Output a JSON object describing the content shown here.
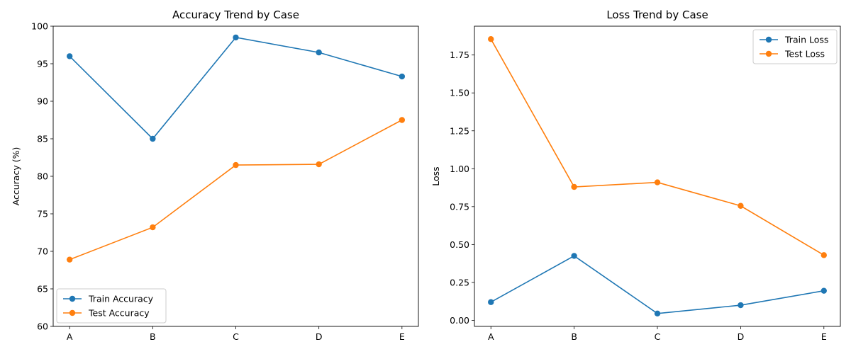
{
  "chart_data": [
    {
      "type": "line",
      "title": "Accuracy Trend by Case",
      "xlabel": "",
      "ylabel": "Accuracy (%)",
      "categories": [
        "A",
        "B",
        "C",
        "D",
        "E"
      ],
      "ylim": [
        60,
        100
      ],
      "yticks": [
        60,
        65,
        70,
        75,
        80,
        85,
        90,
        95,
        100
      ],
      "tick_format": "int",
      "legend_position": "lower-left",
      "grid": false,
      "series": [
        {
          "name": "Train Accuracy",
          "color": "#1f77b4",
          "values": [
            96.0,
            85.0,
            98.5,
            96.5,
            93.3
          ]
        },
        {
          "name": "Test Accuracy",
          "color": "#ff7f0e",
          "values": [
            68.9,
            73.2,
            81.5,
            81.6,
            87.5
          ]
        }
      ]
    },
    {
      "type": "line",
      "title": "Loss Trend by Case",
      "xlabel": "",
      "ylabel": "Loss",
      "categories": [
        "A",
        "B",
        "C",
        "D",
        "E"
      ],
      "ylim": [
        -0.04,
        1.94
      ],
      "yticks": [
        0.0,
        0.25,
        0.5,
        0.75,
        1.0,
        1.25,
        1.5,
        1.75
      ],
      "tick_format": "2dp",
      "legend_position": "upper-right",
      "grid": false,
      "series": [
        {
          "name": "Train Loss",
          "color": "#1f77b4",
          "values": [
            0.12,
            0.425,
            0.045,
            0.1,
            0.195
          ]
        },
        {
          "name": "Test Loss",
          "color": "#ff7f0e",
          "values": [
            1.855,
            0.88,
            0.91,
            0.755,
            0.43
          ]
        }
      ]
    }
  ]
}
